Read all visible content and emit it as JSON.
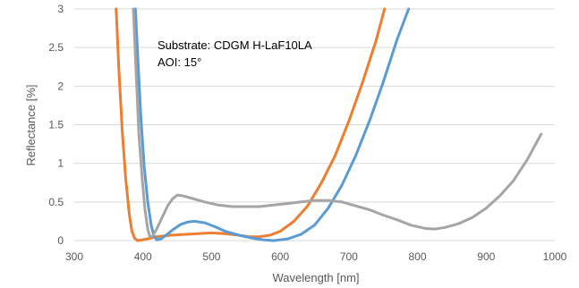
{
  "chart_data": {
    "type": "line",
    "xlabel": "Wavelength [nm]",
    "ylabel": "Reflectance [%]",
    "xlim": [
      300,
      1000
    ],
    "ylim": [
      0,
      3
    ],
    "xticks": [
      300,
      400,
      500,
      600,
      700,
      800,
      900,
      1000
    ],
    "yticks": [
      0,
      0.5,
      1,
      1.5,
      2,
      2.5,
      3
    ],
    "xtick_labels": [
      "300",
      "400",
      "500",
      "600",
      "700",
      "800",
      "900",
      "1000"
    ],
    "ytick_labels": [
      "0",
      "0.5",
      "1",
      "1.5",
      "2",
      "2.5",
      "3"
    ],
    "grid": "horizontal",
    "legend": "none",
    "annotations": [
      "Substrate: CDGM H-LaF10LA",
      "AOI: 15°"
    ],
    "series": [
      {
        "color": "#ED7D31",
        "points": [
          [
            361,
            3.0
          ],
          [
            365,
            2.2
          ],
          [
            370,
            1.4
          ],
          [
            375,
            0.8
          ],
          [
            380,
            0.35
          ],
          [
            384,
            0.12
          ],
          [
            388,
            0.03
          ],
          [
            392,
            0.0
          ],
          [
            400,
            0.01
          ],
          [
            420,
            0.05
          ],
          [
            440,
            0.07
          ],
          [
            460,
            0.08
          ],
          [
            480,
            0.09
          ],
          [
            500,
            0.1
          ],
          [
            520,
            0.09
          ],
          [
            540,
            0.07
          ],
          [
            555,
            0.05
          ],
          [
            570,
            0.05
          ],
          [
            585,
            0.07
          ],
          [
            600,
            0.12
          ],
          [
            620,
            0.25
          ],
          [
            640,
            0.45
          ],
          [
            660,
            0.75
          ],
          [
            680,
            1.1
          ],
          [
            700,
            1.55
          ],
          [
            720,
            2.05
          ],
          [
            740,
            2.6
          ],
          [
            752,
            3.0
          ]
        ]
      },
      {
        "color": "#5B9BD5",
        "points": [
          [
            389,
            3.0
          ],
          [
            393,
            2.3
          ],
          [
            397,
            1.6
          ],
          [
            402,
            0.95
          ],
          [
            407,
            0.5
          ],
          [
            412,
            0.2
          ],
          [
            416,
            0.06
          ],
          [
            420,
            0.01
          ],
          [
            426,
            0.02
          ],
          [
            435,
            0.08
          ],
          [
            445,
            0.15
          ],
          [
            455,
            0.21
          ],
          [
            465,
            0.24
          ],
          [
            475,
            0.25
          ],
          [
            490,
            0.23
          ],
          [
            505,
            0.18
          ],
          [
            520,
            0.12
          ],
          [
            540,
            0.07
          ],
          [
            560,
            0.03
          ],
          [
            575,
            0.01
          ],
          [
            590,
            0.0
          ],
          [
            610,
            0.02
          ],
          [
            630,
            0.08
          ],
          [
            650,
            0.2
          ],
          [
            670,
            0.42
          ],
          [
            690,
            0.72
          ],
          [
            710,
            1.1
          ],
          [
            730,
            1.55
          ],
          [
            750,
            2.05
          ],
          [
            770,
            2.6
          ],
          [
            787,
            3.0
          ]
        ]
      },
      {
        "color": "#A5A5A5",
        "points": [
          [
            386,
            3.0
          ],
          [
            390,
            2.2
          ],
          [
            394,
            1.4
          ],
          [
            399,
            0.8
          ],
          [
            403,
            0.4
          ],
          [
            407,
            0.15
          ],
          [
            410,
            0.05
          ],
          [
            414,
            0.06
          ],
          [
            420,
            0.15
          ],
          [
            428,
            0.3
          ],
          [
            436,
            0.45
          ],
          [
            443,
            0.54
          ],
          [
            450,
            0.59
          ],
          [
            458,
            0.58
          ],
          [
            470,
            0.55
          ],
          [
            490,
            0.5
          ],
          [
            510,
            0.46
          ],
          [
            530,
            0.44
          ],
          [
            550,
            0.44
          ],
          [
            570,
            0.44
          ],
          [
            590,
            0.46
          ],
          [
            610,
            0.48
          ],
          [
            630,
            0.5
          ],
          [
            650,
            0.52
          ],
          [
            670,
            0.52
          ],
          [
            690,
            0.5
          ],
          [
            710,
            0.45
          ],
          [
            730,
            0.4
          ],
          [
            750,
            0.33
          ],
          [
            770,
            0.27
          ],
          [
            790,
            0.2
          ],
          [
            810,
            0.16
          ],
          [
            825,
            0.15
          ],
          [
            840,
            0.17
          ],
          [
            860,
            0.22
          ],
          [
            880,
            0.3
          ],
          [
            900,
            0.42
          ],
          [
            920,
            0.58
          ],
          [
            940,
            0.78
          ],
          [
            960,
            1.05
          ],
          [
            980,
            1.38
          ]
        ]
      }
    ]
  }
}
